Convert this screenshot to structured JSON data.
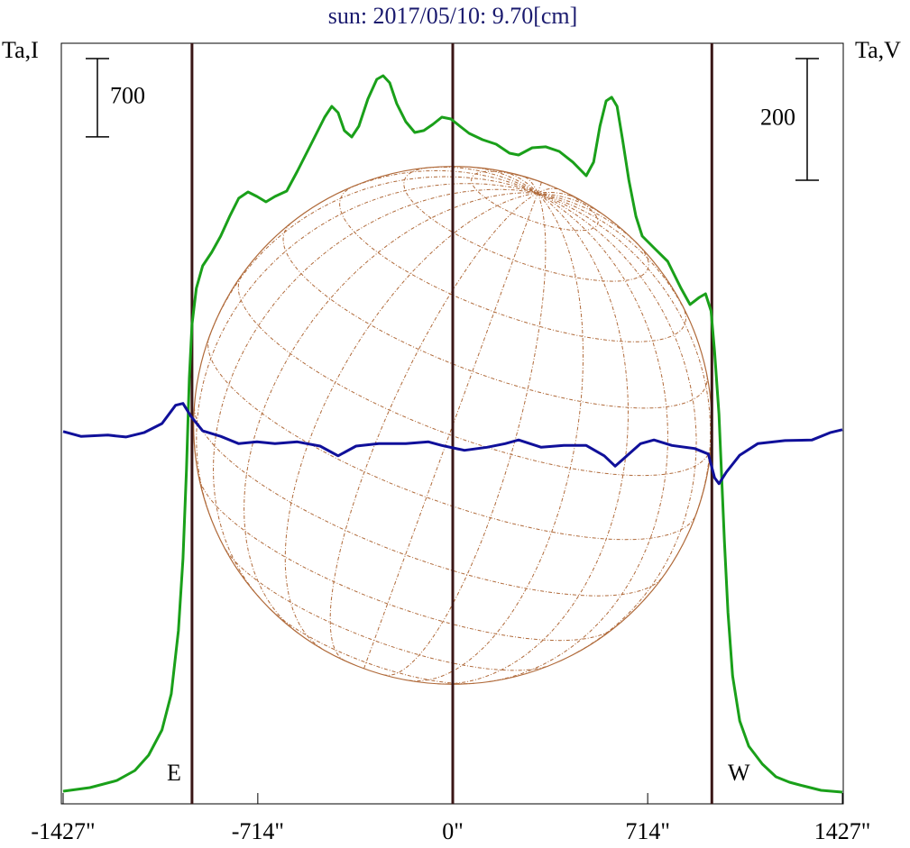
{
  "chart_data": {
    "type": "line",
    "title": "sun: 2017/05/10: 9.70[cm]",
    "ylabel": "Ta,I",
    "y2label": "Ta,V",
    "xlim": [
      -1427,
      1427
    ],
    "xticks": [
      {
        "value": -1427,
        "label": "-1427\""
      },
      {
        "value": -714,
        "label": "-714\""
      },
      {
        "value": 0,
        "label": "0\""
      },
      {
        "value": 714,
        "label": "714\""
      },
      {
        "value": 1427,
        "label": "1427\""
      }
    ],
    "ylim": [
      -100,
      6700
    ],
    "y2lim": [
      -600,
      650
    ],
    "scale_I": 700,
    "scale_V": 200,
    "vlines": [
      -955,
      0,
      949
    ],
    "limb_labels": [
      {
        "label": "E",
        "x": -955
      },
      {
        "label": "W",
        "x": 949
      }
    ],
    "series": [
      {
        "name": "I",
        "color": "#1aa01a",
        "x": [
          -1427,
          -1329,
          -1230,
          -1164,
          -1114,
          -1065,
          -1031,
          -1005,
          -988,
          -975,
          -965,
          -955,
          -939,
          -916,
          -883,
          -850,
          -817,
          -784,
          -750,
          -717,
          -684,
          -651,
          -608,
          -569,
          -519,
          -469,
          -443,
          -420,
          -397,
          -370,
          -344,
          -311,
          -278,
          -255,
          -231,
          -205,
          -172,
          -139,
          -106,
          -73,
          -40,
          -7,
          26,
          60,
          109,
          159,
          208,
          241,
          291,
          341,
          390,
          440,
          489,
          516,
          539,
          562,
          582,
          602,
          622,
          645,
          671,
          694,
          737,
          787,
          836,
          869,
          903,
          926,
          946,
          959,
          975,
          985,
          995,
          1008,
          1025,
          1051,
          1084,
          1134,
          1184,
          1233,
          1283,
          1349,
          1427
        ],
        "values": [
          13,
          45,
          109,
          198,
          335,
          561,
          883,
          1447,
          2092,
          2897,
          3703,
          4186,
          4509,
          4710,
          4831,
          4976,
          5153,
          5314,
          5371,
          5330,
          5282,
          5330,
          5379,
          5556,
          5798,
          6039,
          6136,
          6080,
          5919,
          5862,
          5959,
          6201,
          6378,
          6410,
          6346,
          6160,
          5999,
          5902,
          5919,
          5975,
          6039,
          6023,
          5959,
          5894,
          5838,
          5798,
          5717,
          5701,
          5765,
          5774,
          5733,
          5637,
          5516,
          5637,
          5959,
          6184,
          6217,
          6136,
          5838,
          5475,
          5153,
          4976,
          4871,
          4750,
          4509,
          4364,
          4428,
          4460,
          4307,
          3945,
          3381,
          2817,
          2253,
          1608,
          1044,
          641,
          416,
          255,
          142,
          93,
          61,
          21,
          5
        ]
      },
      {
        "name": "V",
        "color": "#10109a",
        "axis": "y2",
        "x": [
          -1427,
          -1362,
          -1263,
          -1197,
          -1131,
          -1065,
          -1015,
          -988,
          -959,
          -916,
          -850,
          -784,
          -717,
          -651,
          -569,
          -486,
          -420,
          -354,
          -271,
          -172,
          -89,
          -40,
          43,
          126,
          192,
          241,
          324,
          407,
          489,
          555,
          595,
          638,
          688,
          737,
          803,
          886,
          936,
          959,
          975,
          1002,
          1051,
          1117,
          1217,
          1316,
          1382,
          1427
        ],
        "values": [
          12,
          4,
          6,
          3,
          10,
          25,
          55,
          58,
          37,
          13,
          4,
          -8,
          -5,
          -8,
          -5,
          -12,
          -28,
          -12,
          -8,
          -8,
          -5,
          -11,
          -19,
          -14,
          -8,
          -2,
          -14,
          -11,
          -11,
          -28,
          -45,
          -28,
          -8,
          -2,
          -11,
          -16,
          -25,
          -64,
          -74,
          -55,
          -27,
          -8,
          -3,
          -2,
          10,
          15
        ]
      }
    ]
  }
}
